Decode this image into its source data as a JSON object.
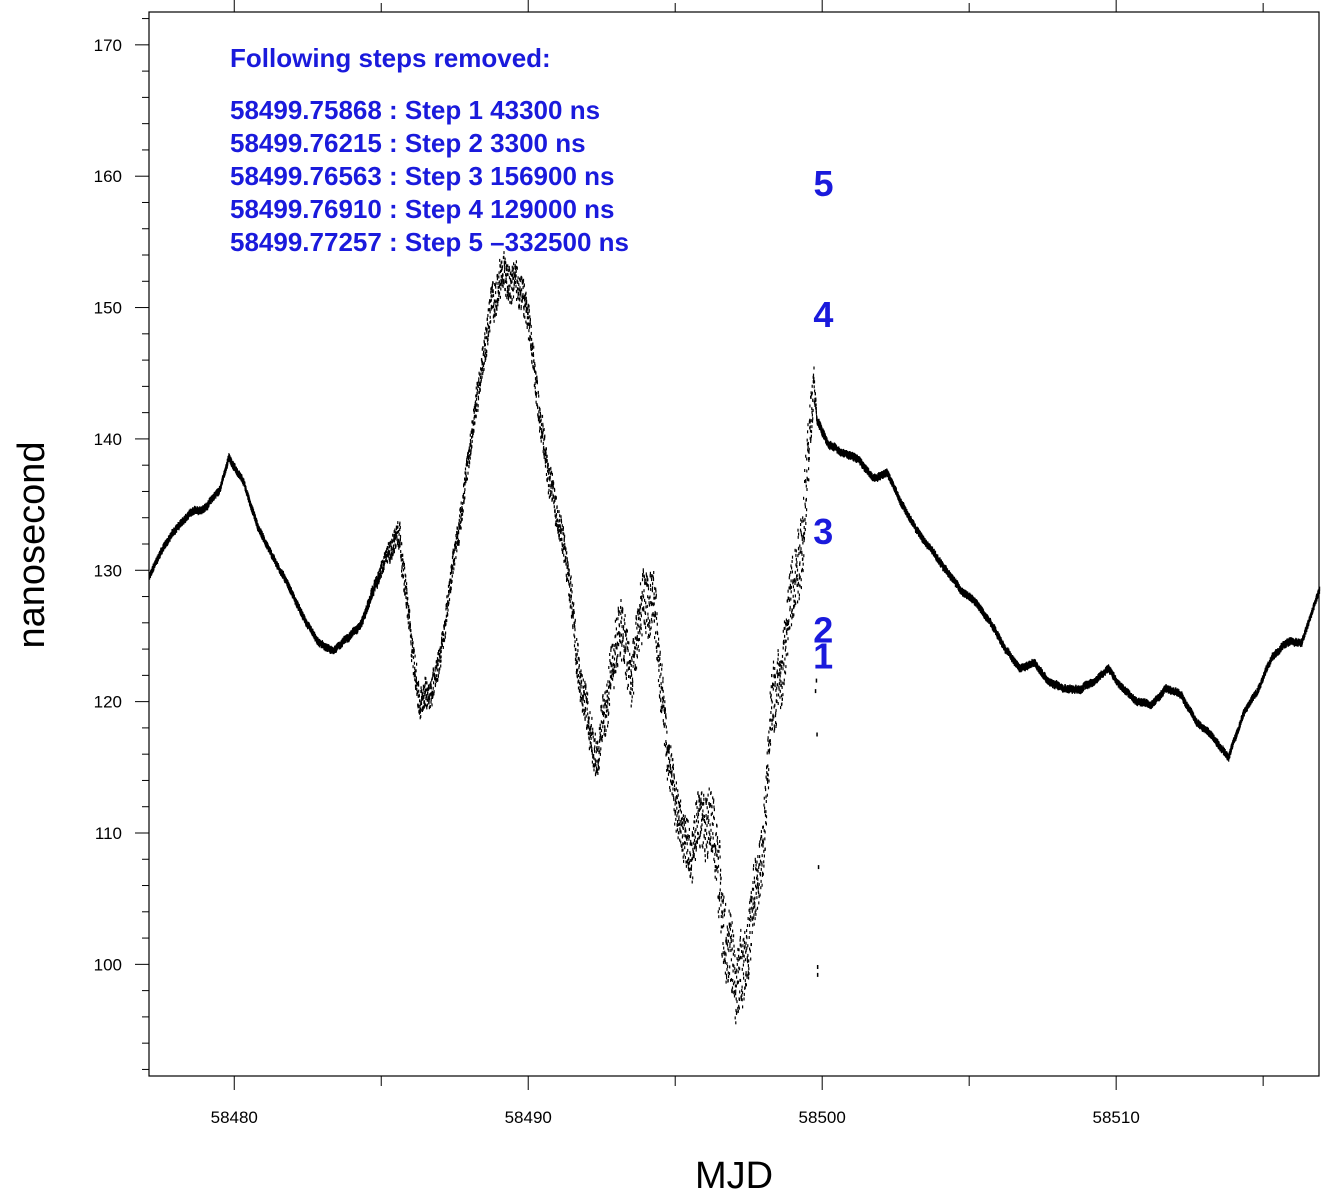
{
  "chart_data": {
    "type": "scatter",
    "title": "",
    "xlabel": "MJD",
    "ylabel": "nanosecond",
    "xlim": [
      58477.1,
      58516.9
    ],
    "ylim": [
      91.5,
      172.5
    ],
    "x_ticks": [
      58480,
      58490,
      58500,
      58510
    ],
    "y_ticks": [
      100,
      110,
      120,
      130,
      140,
      150,
      160,
      170
    ],
    "x_tick_labels": [
      "58480",
      "58490",
      "58500",
      "58510"
    ],
    "y_tick_labels": [
      "100",
      "110",
      "120",
      "130",
      "140",
      "150",
      "160",
      "170"
    ],
    "grid": false,
    "legend": "none",
    "marker_color": "#000000",
    "annotation_color": "#1a1adc",
    "annotation_header": "Following steps removed:",
    "steps": [
      {
        "text": "58499.75868 : Step 1 43300 ns",
        "marker": "1",
        "mjd": 58499.75868,
        "y": 123.5
      },
      {
        "text": "58499.76215 : Step 2 3300 ns",
        "marker": "2",
        "mjd": 58499.76215,
        "y": 125.5
      },
      {
        "text": "58499.76563 : Step 3 156900 ns",
        "marker": "3",
        "mjd": 58499.76563,
        "y": 133.0
      },
      {
        "text": "58499.76910 : Step 4 129000 ns",
        "marker": "4",
        "mjd": 58499.7691,
        "y": 149.5
      },
      {
        "text": "58499.77257 : Step 5 –332500 ns",
        "marker": "5",
        "mjd": 58499.77257,
        "y": 159.5
      }
    ],
    "series": [
      {
        "x": [
          58477.1,
          58477.5,
          58478.0,
          58478.5,
          58479.0,
          58479.5,
          58479.8,
          58480.3,
          58480.8,
          58481.3,
          58481.8,
          58482.3,
          58482.8,
          58483.3,
          58483.8,
          58484.3,
          58484.8,
          58485.2,
          58485.6,
          58485.9,
          58486.3,
          58486.7,
          58487.1,
          58487.5,
          58487.9,
          58488.3,
          58488.7,
          58489.1,
          58489.5,
          58489.9,
          58490.3,
          58490.7,
          58491.1,
          58491.5,
          58491.9,
          58492.3,
          58492.7,
          58493.1,
          58493.5,
          58493.9,
          58494.3,
          58494.7,
          58495.1,
          58495.5,
          58495.9,
          58496.3,
          58496.7,
          58497.1,
          58497.5,
          58497.9,
          58498.3,
          58498.7,
          58499.1,
          58499.4,
          58499.7,
          58499.8,
          58500.2,
          58500.7,
          58501.2,
          58501.7,
          58502.2,
          58502.7,
          58503.2,
          58503.7,
          58504.2,
          58504.7,
          58505.2,
          58505.7,
          58506.2,
          58506.7,
          58507.2,
          58507.7,
          58508.2,
          58508.7,
          58509.2,
          58509.7,
          58510.2,
          58510.7,
          58511.2,
          58511.7,
          58512.2,
          58512.7,
          58513.2,
          58513.8,
          58514.3,
          58514.8,
          58515.3,
          58515.8,
          58516.3,
          58516.9
        ],
        "y": [
          129.5,
          131.5,
          133.2,
          134.3,
          134.8,
          136.2,
          138.6,
          136.6,
          133.2,
          131.0,
          129.0,
          126.5,
          124.5,
          123.8,
          124.8,
          126.0,
          129.0,
          131.0,
          133.5,
          126.5,
          119.5,
          121.0,
          125.0,
          131.5,
          137.5,
          144.0,
          150.0,
          152.0,
          153.0,
          150.0,
          143.0,
          137.0,
          133.0,
          127.0,
          120.0,
          116.0,
          120.0,
          126.0,
          121.0,
          128.0,
          126.0,
          117.0,
          111.0,
          108.0,
          113.0,
          110.0,
          102.0,
          98.0,
          103.0,
          107.0,
          120.0,
          124.0,
          131.0,
          135.0,
          145.0,
          141.5,
          139.5,
          139.0,
          138.5,
          137.0,
          137.5,
          135.0,
          133.0,
          131.5,
          130.0,
          128.5,
          127.5,
          126.0,
          124.0,
          122.5,
          123.0,
          121.5,
          121.0,
          121.0,
          121.5,
          122.5,
          121.0,
          120.0,
          119.8,
          121.0,
          120.5,
          118.5,
          117.5,
          115.8,
          119.0,
          121.0,
          123.5,
          124.5,
          124.5,
          128.5
        ],
        "noise_amplitude": [
          0.4,
          0.4,
          0.4,
          0.4,
          0.4,
          0.4,
          0.4,
          0.4,
          0.4,
          0.4,
          0.4,
          0.4,
          0.4,
          0.4,
          0.4,
          0.5,
          0.8,
          1.5,
          2.5,
          2.5,
          2.5,
          2.5,
          2.0,
          2.0,
          2.0,
          2.5,
          3.0,
          3.0,
          3.0,
          3.0,
          2.5,
          2.5,
          2.5,
          3.5,
          3.5,
          3.5,
          4.0,
          5.0,
          5.0,
          5.5,
          5.0,
          4.0,
          4.0,
          4.0,
          5.0,
          5.5,
          6.0,
          6.0,
          5.5,
          5.5,
          6.0,
          6.0,
          6.0,
          6.5,
          3.0,
          0.6,
          0.4,
          0.4,
          0.4,
          0.4,
          0.4,
          0.4,
          0.4,
          0.4,
          0.4,
          0.4,
          0.4,
          0.4,
          0.4,
          0.4,
          0.4,
          0.4,
          0.4,
          0.4,
          0.4,
          0.4,
          0.4,
          0.4,
          0.4,
          0.4,
          0.4,
          0.4,
          0.4,
          0.4,
          0.4,
          0.4,
          0.4,
          0.4,
          0.4,
          0.4
        ]
      }
    ],
    "outliers": [
      {
        "x": 58499.82,
        "y": 99.8
      },
      {
        "x": 58499.82,
        "y": 99.2
      },
      {
        "x": 58499.85,
        "y": 107.4
      },
      {
        "x": 58499.8,
        "y": 117.5
      },
      {
        "x": 58499.75,
        "y": 120.8
      },
      {
        "x": 58499.78,
        "y": 121.6
      }
    ]
  }
}
